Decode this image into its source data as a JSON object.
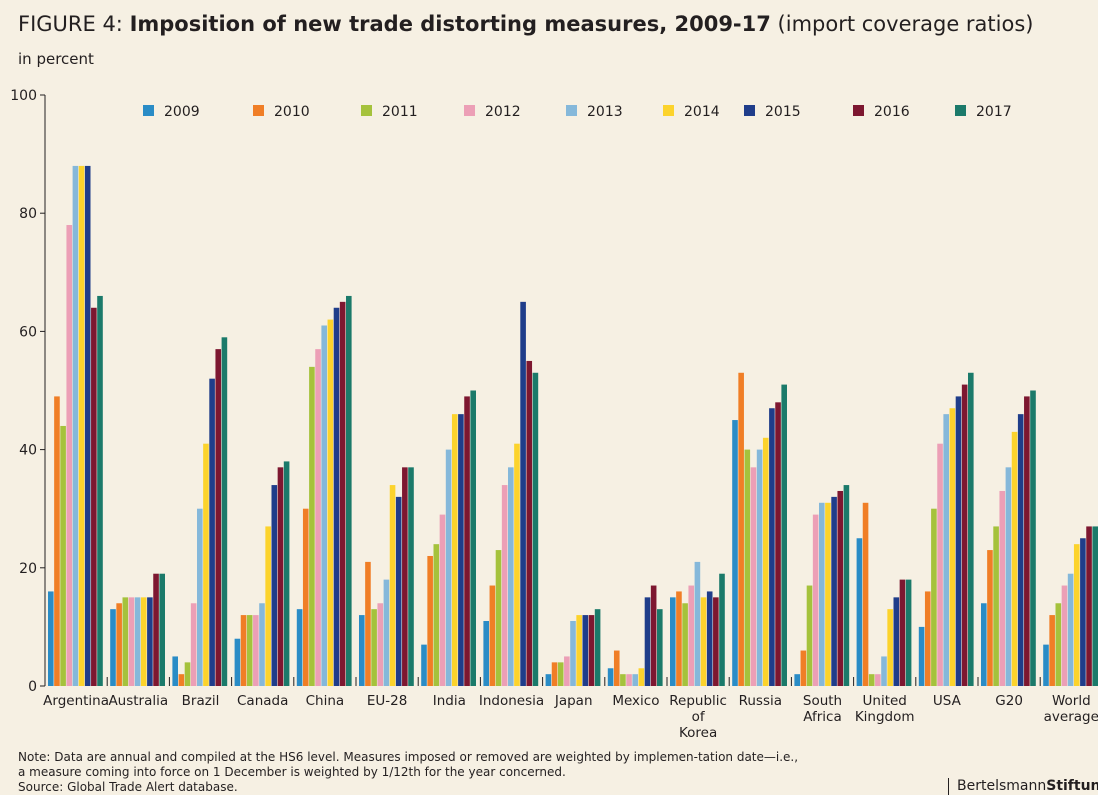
{
  "header": {
    "figure_label": "FIGURE 4: ",
    "title": "Imposition of new trade distorting measures, 2009-17",
    "subtitle": " (import coverage ratios)",
    "unit": "in percent"
  },
  "footer": {
    "note_line1": "Note: Data are annual and compiled at the HS6 level. Measures imposed or removed are weighted by implemen-tation date—i.e.,",
    "note_line2": "a measure coming into force on 1 December is weighted by 1/12th for the year concerned.",
    "source": "Source: Global Trade Alert database.",
    "brand_regular": "Bertelsmann",
    "brand_bold": "Stiftung"
  },
  "chart_data": {
    "type": "bar",
    "ylim": [
      0,
      100
    ],
    "yticks": [
      0,
      20,
      40,
      60,
      80,
      100
    ],
    "grid": false,
    "legend_position": "top",
    "categories": [
      [
        "Argentina"
      ],
      [
        "Australia"
      ],
      [
        "Brazil"
      ],
      [
        "Canada"
      ],
      [
        "China"
      ],
      [
        "EU-28"
      ],
      [
        "India"
      ],
      [
        "Indonesia"
      ],
      [
        "Japan"
      ],
      [
        "Mexico"
      ],
      [
        "Republic",
        "of",
        "Korea"
      ],
      [
        "Russia"
      ],
      [
        "South",
        "Africa"
      ],
      [
        "United",
        "Kingdom"
      ],
      [
        "USA"
      ],
      [
        "G20"
      ],
      [
        "World",
        "average"
      ]
    ],
    "series": [
      {
        "name": "2009",
        "color": "#2a8cc6",
        "values": [
          16,
          13,
          5,
          8,
          13,
          12,
          7,
          11,
          2,
          3,
          15,
          45,
          2,
          25,
          10,
          14,
          7
        ]
      },
      {
        "name": "2010",
        "color": "#f07e26",
        "values": [
          49,
          14,
          2,
          12,
          30,
          21,
          22,
          17,
          4,
          6,
          16,
          53,
          6,
          31,
          16,
          23,
          12
        ]
      },
      {
        "name": "2011",
        "color": "#a5c23c",
        "values": [
          44,
          15,
          4,
          12,
          54,
          13,
          24,
          23,
          4,
          2,
          14,
          40,
          17,
          2,
          30,
          27,
          14
        ]
      },
      {
        "name": "2012",
        "color": "#ec9fb6",
        "values": [
          78,
          15,
          14,
          12,
          57,
          14,
          29,
          34,
          5,
          2,
          17,
          37,
          29,
          2,
          41,
          33,
          17
        ]
      },
      {
        "name": "2013",
        "color": "#85b8da",
        "values": [
          88,
          15,
          30,
          14,
          61,
          18,
          40,
          37,
          11,
          2,
          21,
          40,
          31,
          5,
          46,
          37,
          19
        ]
      },
      {
        "name": "2014",
        "color": "#fcd32c",
        "values": [
          88,
          15,
          41,
          27,
          62,
          34,
          46,
          41,
          12,
          3,
          15,
          42,
          31,
          13,
          47,
          43,
          24
        ]
      },
      {
        "name": "2015",
        "color": "#1f3d8a",
        "values": [
          88,
          15,
          52,
          34,
          64,
          32,
          46,
          65,
          12,
          15,
          16,
          47,
          32,
          15,
          49,
          46,
          25
        ]
      },
      {
        "name": "2016",
        "color": "#7d1730",
        "values": [
          64,
          19,
          57,
          37,
          65,
          37,
          49,
          55,
          12,
          17,
          15,
          48,
          33,
          18,
          51,
          49,
          27
        ]
      },
      {
        "name": "2017",
        "color": "#1b7a6a",
        "values": [
          66,
          19,
          59,
          38,
          66,
          37,
          50,
          53,
          13,
          13,
          19,
          51,
          34,
          18,
          53,
          50,
          27
        ]
      }
    ]
  }
}
